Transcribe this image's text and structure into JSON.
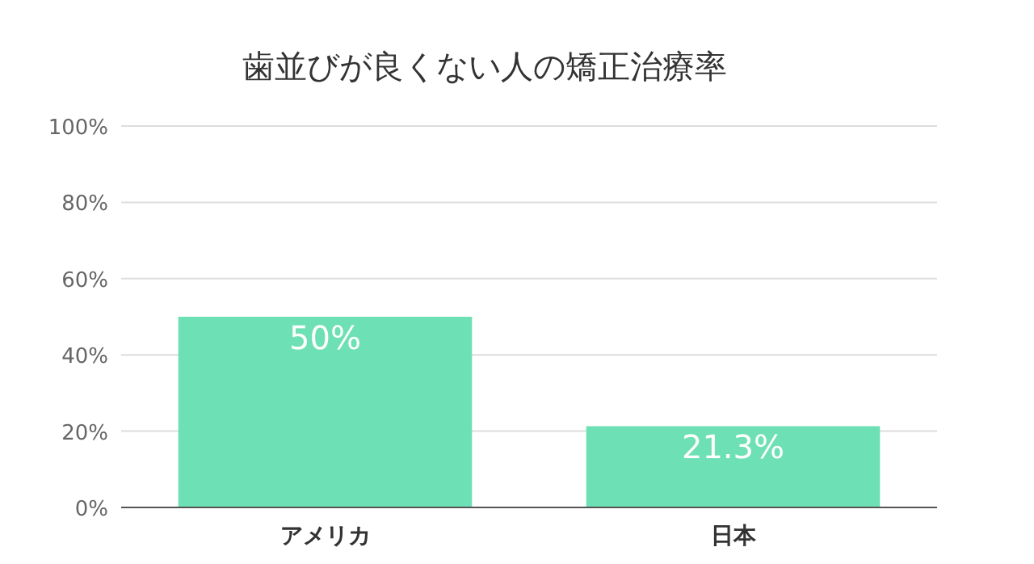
{
  "chart_data": {
    "type": "bar",
    "title": "歯並びが良くない人の矯正治療率",
    "categories": [
      "アメリカ",
      "日本"
    ],
    "values": [
      50,
      21.3
    ],
    "color": "#6ee0b5",
    "value_labels": [
      "50%",
      "21.3%"
    ],
    "ylim": [
      0,
      100
    ],
    "yticks": [
      {
        "value": 0,
        "label": "0%"
      },
      {
        "value": 20,
        "label": "20%"
      },
      {
        "value": 40,
        "label": "40%"
      },
      {
        "value": 60,
        "label": "60%"
      },
      {
        "value": 80,
        "label": "80%"
      },
      {
        "value": 100,
        "label": "100%"
      }
    ],
    "grid": "y"
  }
}
